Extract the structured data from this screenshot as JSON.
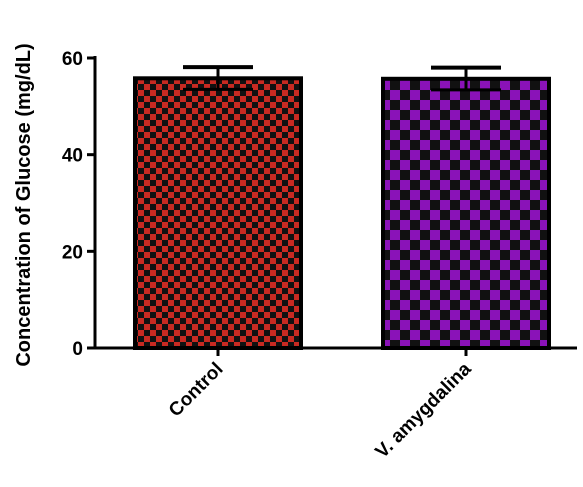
{
  "chart_data": {
    "type": "bar",
    "categories": [
      "Control",
      "V. amygdalina"
    ],
    "values": [
      55.8,
      55.7
    ],
    "errors": [
      2.3,
      2.3
    ],
    "ylabel": "Concentration of Glucose (mg/dL)",
    "xlabel": "",
    "ylim": [
      0,
      60
    ],
    "yticks": [
      0,
      20,
      40,
      60
    ],
    "colors": {
      "Control": "#c82a22",
      "V. amygdalina": "#8a12b8"
    },
    "fill_pattern": "checkered",
    "grid": false,
    "legend": "none"
  }
}
